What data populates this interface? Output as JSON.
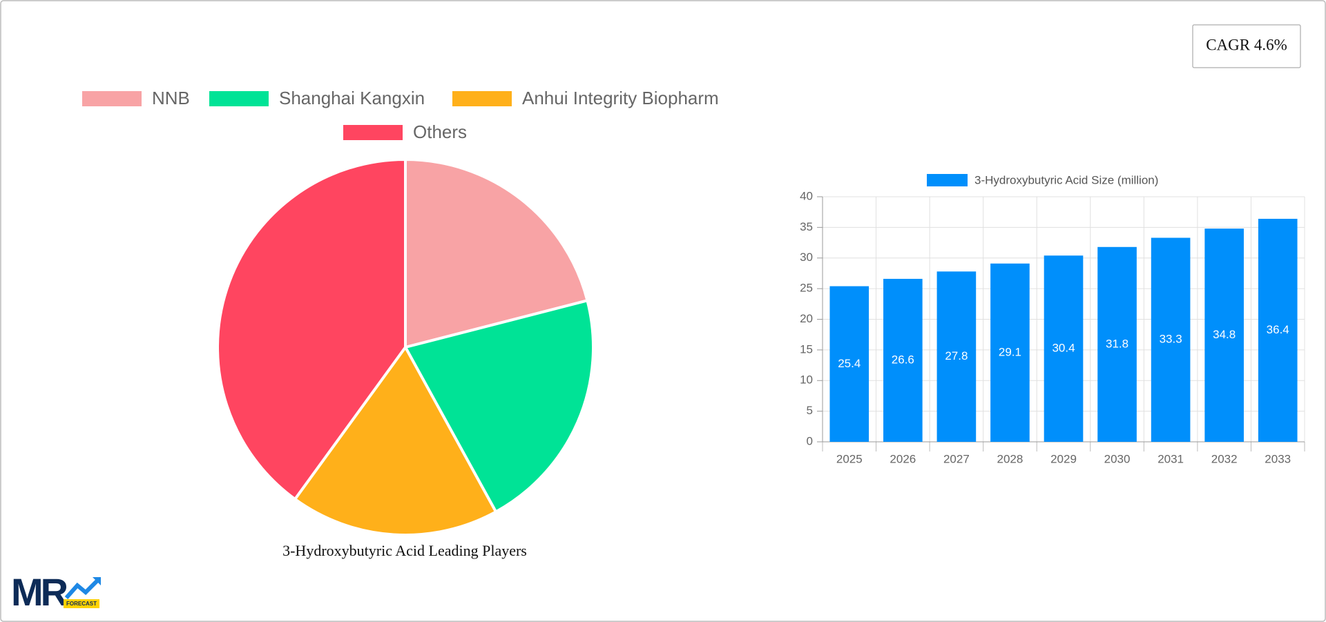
{
  "chart_data": [
    {
      "type": "pie",
      "title": "3-Hydroxybutyric Acid Leading Players",
      "categories": [
        "NNB",
        "Shanghai Kangxin",
        "Anhui Integrity Biopharm",
        "Others"
      ],
      "values": [
        21,
        21,
        18,
        40
      ],
      "colors": [
        "#f8a3a5",
        "#00e396",
        "#ffb01a",
        "#ff4560"
      ]
    },
    {
      "type": "bar",
      "categories": [
        "2025",
        "2026",
        "2027",
        "2028",
        "2029",
        "2030",
        "2031",
        "2032",
        "2033"
      ],
      "series": [
        {
          "name": "3-Hydroxybutyric Acid Size (million)",
          "color": "#008ffb",
          "values": [
            25.4,
            26.6,
            27.8,
            29.1,
            30.4,
            31.8,
            33.3,
            34.8,
            36.4
          ]
        }
      ],
      "ylim": [
        0,
        40
      ],
      "yticks": [
        0,
        5,
        10,
        15,
        20,
        25,
        30,
        35,
        40
      ],
      "grid": true
    }
  ],
  "cagr": "CAGR 4.6%",
  "logo": {
    "text": "MR",
    "sub": "FORECAST"
  }
}
